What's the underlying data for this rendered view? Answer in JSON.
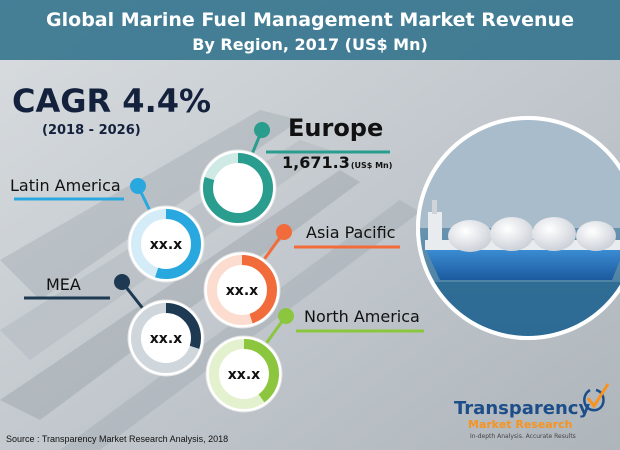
{
  "chart_data": {
    "type": "infographic-rings",
    "title": "Global Marine Fuel Management Market Revenue",
    "subtitle": "By Region, 2017 (US$ Mn)",
    "cagr": {
      "label": "CAGR 4.4%",
      "period": "(2018 - 2026)"
    },
    "regions": [
      {
        "name": "Europe",
        "value_label": "1,671.3",
        "unit": "(US$ Mn)",
        "ring_value": "",
        "share": 0.8,
        "color": "#2a9d8f"
      },
      {
        "name": "Latin America",
        "value_label": "",
        "unit": "",
        "ring_value": "xx.x",
        "share": 0.55,
        "color": "#29a8df"
      },
      {
        "name": "Asia Pacific",
        "value_label": "",
        "unit": "",
        "ring_value": "xx.x",
        "share": 0.45,
        "color": "#f26b3a"
      },
      {
        "name": "MEA",
        "value_label": "",
        "unit": "",
        "ring_value": "xx.x",
        "share": 0.3,
        "color": "#1d3a52"
      },
      {
        "name": "North America",
        "value_label": "",
        "unit": "",
        "ring_value": "xx.x",
        "share": 0.4,
        "color": "#8cc63f"
      }
    ],
    "source": "Source : Transparency Market Research Analysis, 2018"
  },
  "brand": {
    "name_line1": "Transparency",
    "name_line2": "Market Research",
    "tagline": "In-depth Analysis. Accurate Results"
  },
  "colors": {
    "title_band": "#2a6f8a",
    "brand_blue": "#1d4e89",
    "brand_orange": "#f7931e"
  }
}
